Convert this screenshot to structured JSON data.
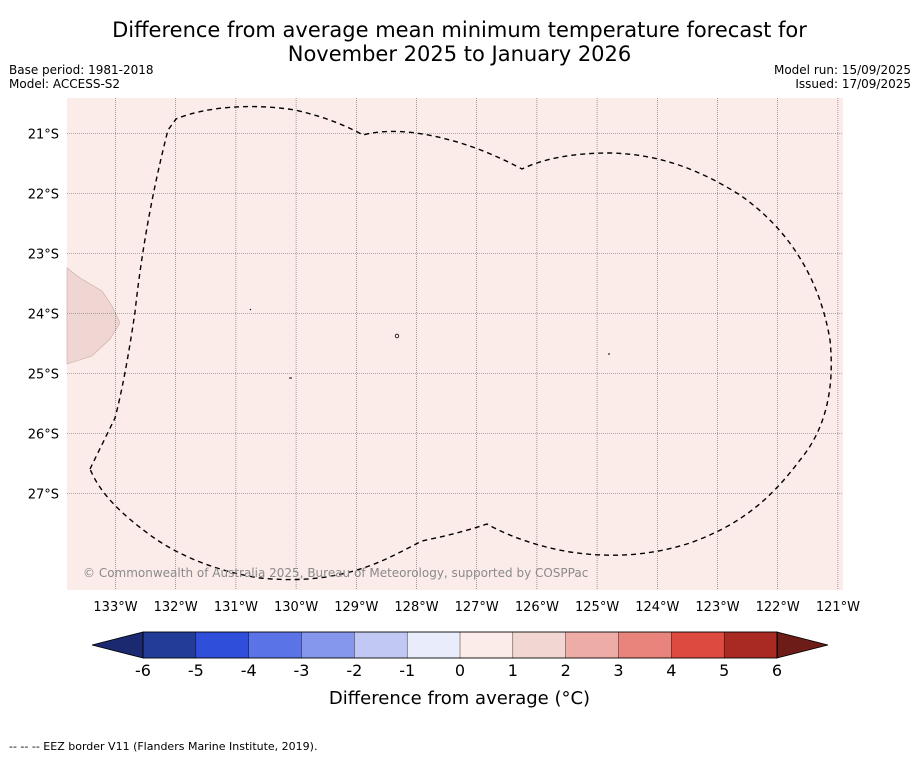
{
  "header": {
    "title_line1": "Difference from average mean minimum temperature forecast for",
    "title_line2": "November 2025 to January 2026",
    "base_period": "Base period: 1981-2018",
    "model": "Model: ACCESS-S2",
    "model_run": "Model run: 15/09/2025",
    "issued": "Issued: 17/09/2025"
  },
  "map": {
    "background_color": "#fbecea",
    "shaded_region_color": "#f0d6d3",
    "lat_labels": [
      "21°S",
      "22°S",
      "23°S",
      "24°S",
      "25°S",
      "26°S",
      "27°S"
    ],
    "lon_labels": [
      "133°W",
      "132°W",
      "131°W",
      "130°W",
      "129°W",
      "128°W",
      "127°W",
      "126°W",
      "125°W",
      "124°W",
      "123°W",
      "122°W",
      "121°W"
    ],
    "copyright": "© Commonwealth of Australia 2025, Bureau of Meteorology, supported by COSPPac"
  },
  "colorbar": {
    "ticks": [
      "-6",
      "-5",
      "-4",
      "-3",
      "-2",
      "-1",
      "0",
      "1",
      "2",
      "3",
      "4",
      "5",
      "6"
    ],
    "colors": [
      "#223c98",
      "#2f4fdb",
      "#5a73e6",
      "#8497ed",
      "#c1c8f4",
      "#e9ecfb",
      "#fcece9",
      "#f2d6d2",
      "#eeaca6",
      "#e8847b",
      "#dc4a40",
      "#a82a22"
    ],
    "under_color": "#1b2a70",
    "over_color": "#6e1c17",
    "label": "Difference from average (°C)"
  },
  "footnote": "-- -- -- EEZ border V11 (Flanders Marine Institute, 2019)."
}
